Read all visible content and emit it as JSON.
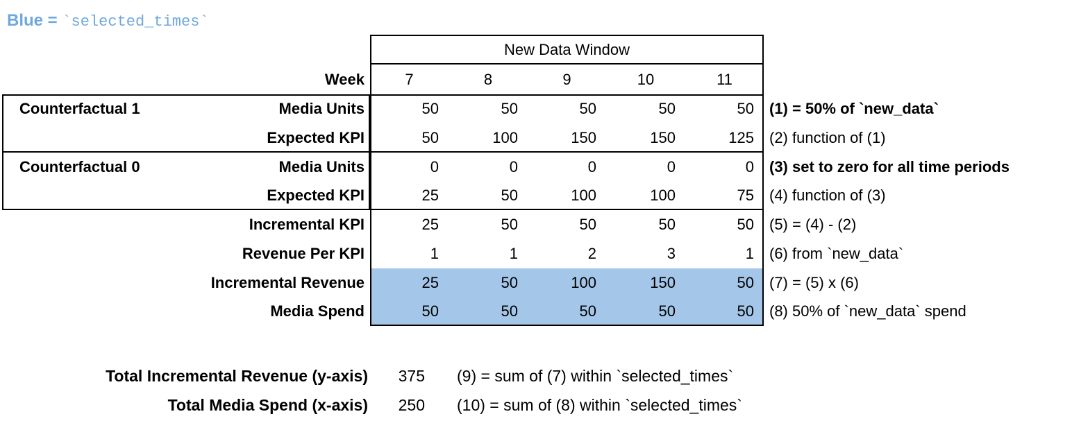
{
  "legend": {
    "prefix": "Blue = ",
    "code": "`selected_times`"
  },
  "colors": {
    "legend_text_blue": "#6fa8dc",
    "highlight_fill_blue": "#a4c6e8",
    "border": "#000000"
  },
  "table": {
    "window_title": "New Data Window",
    "week_label": "Week",
    "weeks": [
      "7",
      "8",
      "9",
      "10",
      "11"
    ],
    "groups": [
      "Counterfactual 1",
      "Counterfactual 0"
    ],
    "rows": [
      {
        "label": "Media Units",
        "values": [
          "50",
          "50",
          "50",
          "50",
          "50"
        ],
        "note": "(1) = 50% of `new_data`"
      },
      {
        "label": "Expected KPI",
        "values": [
          "50",
          "100",
          "150",
          "150",
          "125"
        ],
        "note": "(2) function of (1)"
      },
      {
        "label": "Media Units",
        "values": [
          "0",
          "0",
          "0",
          "0",
          "0"
        ],
        "note": "(3) set to zero for all time periods"
      },
      {
        "label": "Expected KPI",
        "values": [
          "25",
          "50",
          "100",
          "100",
          "75"
        ],
        "note": "(4) function of (3)"
      },
      {
        "label": "Incremental KPI",
        "values": [
          "25",
          "50",
          "50",
          "50",
          "50"
        ],
        "note": "(5) = (4) - (2)"
      },
      {
        "label": "Revenue Per KPI",
        "values": [
          "1",
          "1",
          "2",
          "3",
          "1"
        ],
        "note": "(6) from `new_data`"
      },
      {
        "label": "Incremental Revenue",
        "values": [
          "25",
          "50",
          "100",
          "150",
          "50"
        ],
        "note": "(7) = (5) x (6)"
      },
      {
        "label": "Media Spend",
        "values": [
          "50",
          "50",
          "50",
          "50",
          "50"
        ],
        "note": "(8) 50% of `new_data` spend"
      }
    ]
  },
  "totals": [
    {
      "label": "Total Incremental Revenue (y-axis)",
      "value": "375",
      "note": "(9) = sum of (7) within `selected_times`"
    },
    {
      "label": "Total Media Spend (x-axis)",
      "value": "250",
      "note": "(10) = sum of (8) within `selected_times`"
    }
  ]
}
